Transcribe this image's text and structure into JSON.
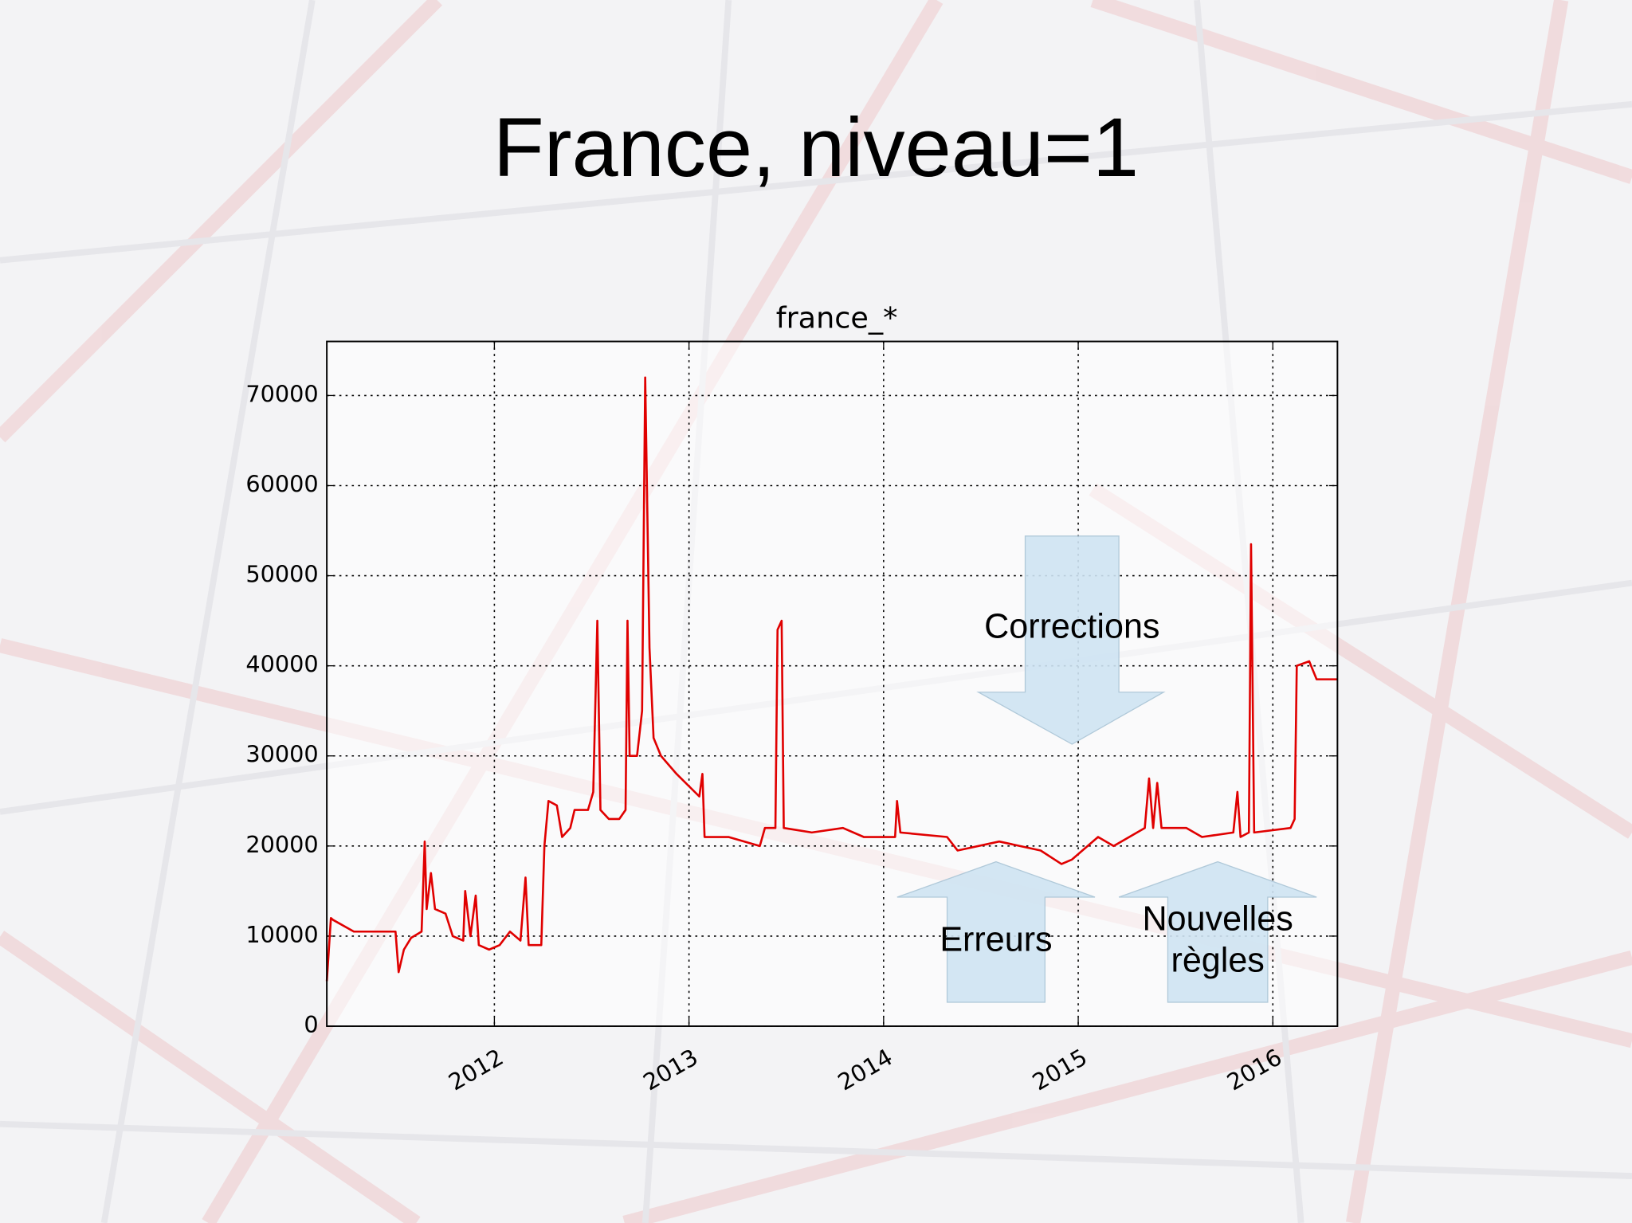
{
  "slide_title": "France, niveau=1",
  "chart_data": {
    "type": "line",
    "title": "france_*",
    "x": [
      2011.139,
      2011.16,
      2011.171,
      2011.278,
      2011.492,
      2011.508,
      2011.535,
      2011.572,
      2011.626,
      2011.642,
      2011.652,
      2011.674,
      2011.695,
      2011.749,
      2011.786,
      2011.84,
      2011.85,
      2011.877,
      2011.904,
      2011.92,
      2011.973,
      2012.027,
      2012.08,
      2012.134,
      2012.16,
      2012.176,
      2012.241,
      2012.257,
      2012.278,
      2012.321,
      2012.348,
      2012.39,
      2012.412,
      2012.481,
      2012.508,
      2012.529,
      2012.545,
      2012.588,
      2012.642,
      2012.674,
      2012.684,
      2012.695,
      2012.733,
      2012.759,
      2012.775,
      2012.797,
      2012.818,
      2012.856,
      2012.936,
      2013.053,
      2013.069,
      2013.08,
      2013.203,
      2013.364,
      2013.39,
      2013.444,
      2013.455,
      2013.476,
      2013.487,
      2013.631,
      2013.791,
      2013.898,
      2014.059,
      2014.069,
      2014.086,
      2014.326,
      2014.38,
      2014.594,
      2014.807,
      2014.914,
      2014.968,
      2015.102,
      2015.182,
      2015.342,
      2015.364,
      2015.385,
      2015.406,
      2015.428,
      2015.556,
      2015.636,
      2015.797,
      2015.818,
      2015.834,
      2015.877,
      2015.888,
      2015.904,
      2016.091,
      2016.112,
      2016.123,
      2016.187,
      2016.225,
      2016.332
    ],
    "values": [
      5000,
      12000,
      11800,
      10500,
      10500,
      6000,
      8500,
      9800,
      10500,
      20500,
      13000,
      17000,
      13000,
      12500,
      10000,
      9500,
      15000,
      10000,
      14500,
      9000,
      8500,
      9000,
      10500,
      9500,
      16500,
      9000,
      9000,
      20000,
      25000,
      24500,
      21000,
      22000,
      24000,
      24000,
      26000,
      45000,
      24000,
      23000,
      23000,
      24000,
      45000,
      30000,
      30000,
      35000,
      72000,
      42000,
      32000,
      30000,
      28000,
      25500,
      28000,
      21000,
      21000,
      20000,
      22000,
      22000,
      44000,
      45000,
      22000,
      21500,
      22000,
      21000,
      21000,
      25000,
      21500,
      21000,
      19500,
      20500,
      19500,
      18000,
      18500,
      21000,
      20000,
      22000,
      27500,
      22000,
      27000,
      22000,
      22000,
      21000,
      21500,
      26000,
      21000,
      21500,
      53500,
      21500,
      22000,
      23000,
      40000,
      40500,
      38500,
      38500
    ],
    "color": "#e00000",
    "xlim": [
      2011.139,
      2016.332
    ],
    "xticks": [
      2012,
      2013,
      2014,
      2015,
      2016
    ],
    "ylim": [
      0,
      76000
    ],
    "yticks": [
      0,
      10000,
      20000,
      30000,
      40000,
      50000,
      60000,
      70000
    ],
    "grid": true,
    "annotations": [
      {
        "text": "Corrections"
      },
      {
        "text": "Erreurs"
      },
      {
        "text": [
          "Nouvelles",
          "règles"
        ]
      }
    ]
  }
}
